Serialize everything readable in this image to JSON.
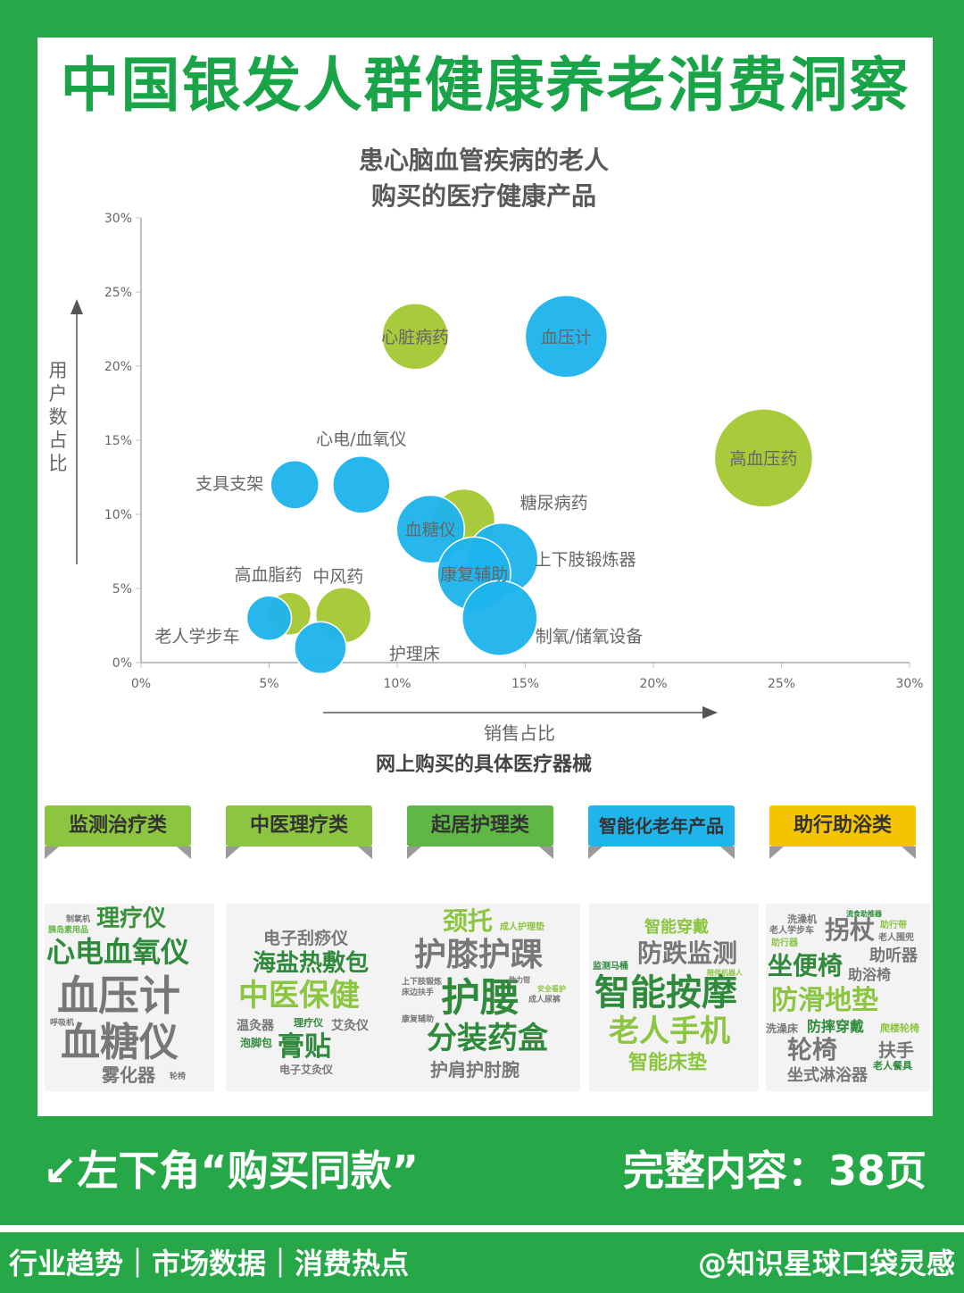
{
  "header": {
    "title": "中国银发人群健康养老消费洞察"
  },
  "chart_data": {
    "type": "scatter",
    "title_lines": [
      "患心脑血管疾病的老人",
      "购买的医疗健康产品"
    ],
    "xlabel": "销售占比",
    "ylabel": "用户数占比",
    "xlim": [
      0,
      30
    ],
    "ylim": [
      0,
      30
    ],
    "x_ticks": [
      "0%",
      "5%",
      "10%",
      "15%",
      "20%",
      "25%",
      "30%"
    ],
    "y_ticks": [
      "0%",
      "5%",
      "10%",
      "15%",
      "20%",
      "25%",
      "30%"
    ],
    "colors": {
      "green": "#a6c832",
      "blue": "#1eb4ec"
    },
    "points": [
      {
        "label": "心脏病药",
        "x": 10.7,
        "y": 22.0,
        "r": 37,
        "color": "green"
      },
      {
        "label": "血压计",
        "x": 16.6,
        "y": 22.0,
        "r": 46,
        "color": "blue"
      },
      {
        "label": "高血压药",
        "x": 24.3,
        "y": 13.8,
        "r": 55,
        "color": "green"
      },
      {
        "label": "心电/血氧仪",
        "x": 8.6,
        "y": 12.0,
        "r": 32,
        "color": "blue"
      },
      {
        "label": "支具支架",
        "x": 6.0,
        "y": 12.0,
        "r": 27,
        "color": "blue"
      },
      {
        "label": "糖尿病药",
        "x": 12.6,
        "y": 9.6,
        "r": 35,
        "color": "green"
      },
      {
        "label": "血糖仪",
        "x": 11.3,
        "y": 9.0,
        "r": 38,
        "color": "blue"
      },
      {
        "label": "上下肢锻炼器",
        "x": 14.1,
        "y": 7.0,
        "r": 40,
        "color": "blue"
      },
      {
        "label": "康复辅助",
        "x": 13.0,
        "y": 6.0,
        "r": 41,
        "color": "blue"
      },
      {
        "label": "制氧/储氧设备",
        "x": 14.0,
        "y": 3.0,
        "r": 42,
        "color": "blue"
      },
      {
        "label": "高血脂药",
        "x": 5.8,
        "y": 3.3,
        "r": 24,
        "color": "green"
      },
      {
        "label": "中风药",
        "x": 7.9,
        "y": 3.2,
        "r": 31,
        "color": "green"
      },
      {
        "label": "老人学步车",
        "x": 5.0,
        "y": 3.0,
        "r": 25,
        "color": "blue"
      },
      {
        "label": "护理床",
        "x": 7.0,
        "y": 1.0,
        "r": 29,
        "color": "blue"
      }
    ]
  },
  "section": {
    "title": "网上购买的具体医疗器械"
  },
  "categories": [
    {
      "label": "监测治疗类",
      "color": "#8cc540"
    },
    {
      "label": "中医理疗类",
      "color": "#8cc540"
    },
    {
      "label": "起居护理类",
      "color": "#5fb845"
    },
    {
      "label": "智能化老年产品",
      "color": "#1fb4ea"
    },
    {
      "label": "助行助浴类",
      "color": "#f5c400"
    }
  ],
  "clouds": [
    {
      "words": [
        "理疗仪",
        "心电血氧仪",
        "血压计",
        "血糖仪",
        "雾化器",
        "胰岛素用品",
        "呼吸机",
        "轮椅",
        "制氧机"
      ]
    },
    {
      "words": [
        "电子刮痧仪",
        "海盐热敷包",
        "中医保健",
        "温灸器",
        "理疗仪",
        "艾灸仪",
        "泡脚包",
        "膏贴",
        "电子艾灸仪"
      ]
    },
    {
      "words": [
        "颈托",
        "成人护理垫",
        "护膝护踝",
        "护腰",
        "分装药盒",
        "护肩护肘腕",
        "上下肢锻炼",
        "床边扶手",
        "康复辅助",
        "成人尿裤",
        "安全看护",
        "助力钳"
      ]
    },
    {
      "words": [
        "智能穿戴",
        "防跌监测",
        "智能按摩",
        "老人手机",
        "智能床垫",
        "监测马桶",
        "陪伴机器人"
      ]
    },
    {
      "words": [
        "洗澡机",
        "流食助推器",
        "老人学步车",
        "拐杖",
        "助行带",
        "老人围兜",
        "助行器",
        "坐便椅",
        "助听器",
        "助浴椅",
        "防滑地垫",
        "洗澡床",
        "防摔穿戴",
        "爬楼轮椅",
        "轮椅",
        "扶手",
        "老人餐具",
        "坐式淋浴器"
      ]
    }
  ],
  "cta": {
    "left": "↙左下角“购买同款”",
    "right": "完整内容：38页"
  },
  "footer": {
    "left": "行业趋势｜市场数据｜消费热点",
    "right": "@知识星球口袋灵感"
  }
}
